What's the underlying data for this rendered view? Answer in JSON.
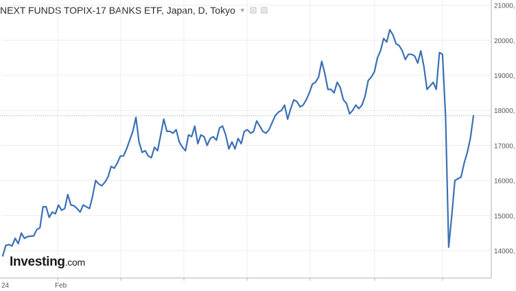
{
  "header": {
    "title": "NEXT FUNDS TOPIX-17 BANKS ETF, Japan, D, Tokyo",
    "dropdown_icon": "chevron-down-icon",
    "settings_icon": "gear-icon",
    "fullscreen_icon": "expand-icon"
  },
  "logo": {
    "brand": "Investing",
    "suffix": ".com"
  },
  "colors": {
    "line": "#3a6fb5",
    "grid": "#ececec",
    "axis": "#b0b0b0",
    "last_price_line": "#7d9bcd"
  },
  "chart_data": {
    "type": "line",
    "title": "NEXT FUNDS TOPIX-17 BANKS ETF, Japan, D, Tokyo",
    "x_tick_labels": [
      "24",
      "Feb"
    ],
    "y_tick_labels": [
      "14000,",
      "15000,",
      "16000,",
      "17000,",
      "18000,",
      "19000,",
      "20000,",
      "21000,"
    ],
    "ylim": [
      13800,
      21100
    ],
    "last_price_level": 17850,
    "grid": true,
    "series": [
      {
        "values": [
          13850,
          14150,
          14170,
          14130,
          14350,
          14200,
          14500,
          14350,
          14400,
          14410,
          14420,
          14600,
          14650,
          15250,
          15250,
          14950,
          15100,
          15050,
          15300,
          15150,
          15200,
          15600,
          15300,
          15280,
          15200,
          15100,
          15300,
          15250,
          15200,
          15550,
          16000,
          15900,
          15850,
          15950,
          16100,
          16400,
          16350,
          16500,
          16700,
          16700,
          16900,
          17150,
          17400,
          17800,
          17100,
          16800,
          16850,
          16700,
          16650,
          16950,
          16850,
          17300,
          17750,
          17400,
          17400,
          17350,
          17450,
          17100,
          16950,
          16850,
          17300,
          17250,
          17550,
          17050,
          17300,
          17250,
          17000,
          17200,
          17250,
          17150,
          17500,
          17550,
          17300,
          16900,
          17100,
          16900,
          17200,
          17050,
          17400,
          17450,
          17350,
          17400,
          17700,
          17550,
          17400,
          17350,
          17450,
          17650,
          17850,
          17950,
          18000,
          18150,
          17750,
          18050,
          18300,
          18250,
          18100,
          18150,
          18300,
          18500,
          18750,
          18800,
          18950,
          19400,
          19050,
          18600,
          18600,
          18500,
          18800,
          18650,
          18300,
          18200,
          17900,
          18000,
          18150,
          18050,
          18150,
          18400,
          18850,
          18950,
          19100,
          19500,
          19700,
          20050,
          19950,
          20300,
          20150,
          19900,
          19850,
          19700,
          19450,
          19600,
          19600,
          19550,
          19350,
          19700,
          19250,
          18600,
          18700,
          18800,
          18600,
          19650,
          19600,
          17800,
          14100,
          15000,
          16000,
          16050,
          16100,
          16500,
          16800,
          17200,
          17850
        ]
      }
    ]
  }
}
